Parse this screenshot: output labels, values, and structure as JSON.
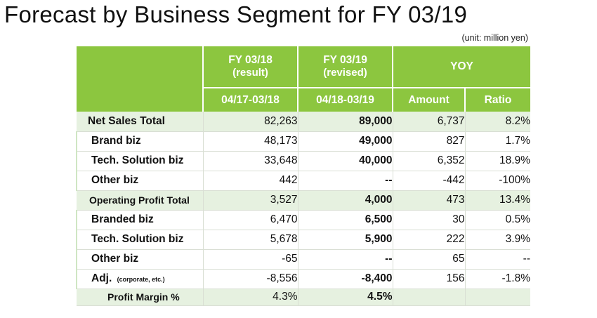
{
  "title": "Forecast by Business Segment for FY 03/19",
  "unit": "(unit: million yen)",
  "header": {
    "fy18": "FY 03/18",
    "fy18_sub": "(result)",
    "fy19": "FY 03/19",
    "fy19_sub": "(revised)",
    "yoy": "YOY",
    "period18": "04/17-03/18",
    "period19": "04/18-03/19",
    "amount": "Amount",
    "ratio": "Ratio"
  },
  "rows": [
    {
      "label": "Net Sales Total",
      "fy18": "82,263",
      "fy19": "89,000",
      "amount": "6,737",
      "ratio": "8.2%"
    },
    {
      "label": "Brand biz",
      "fy18": "48,173",
      "fy19": "49,000",
      "amount": "827",
      "ratio": "1.7%"
    },
    {
      "label": "Tech. Solution biz",
      "fy18": "33,648",
      "fy19": "40,000",
      "amount": "6,352",
      "ratio": "18.9%"
    },
    {
      "label": "Other biz",
      "fy18": "442",
      "fy19": "--",
      "amount": "-442",
      "ratio": "-100%"
    },
    {
      "label": "Operating Profit Total",
      "fy18": "3,527",
      "fy19": "4,000",
      "amount": "473",
      "ratio": "13.4%"
    },
    {
      "label": "Branded biz",
      "fy18": "6,470",
      "fy19": "6,500",
      "amount": "30",
      "ratio": "0.5%"
    },
    {
      "label": "Tech. Solution biz",
      "fy18": "5,678",
      "fy19": "5,900",
      "amount": "222",
      "ratio": "3.9%"
    },
    {
      "label": "Other biz",
      "fy18": "-65",
      "fy19": "--",
      "amount": "65",
      "ratio": "--"
    },
    {
      "label": "Adj.",
      "label_note": "(corporate, etc.)",
      "fy18": "-8,556",
      "fy19": "-8,400",
      "amount": "156",
      "ratio": "-1.8%"
    },
    {
      "label": "Profit Margin %",
      "fy18": "4.3%",
      "fy19": "4.5%",
      "amount": "",
      "ratio": ""
    }
  ],
  "colors": {
    "header_green": "#8cc63f",
    "row_shade": "#e6f1e0"
  }
}
